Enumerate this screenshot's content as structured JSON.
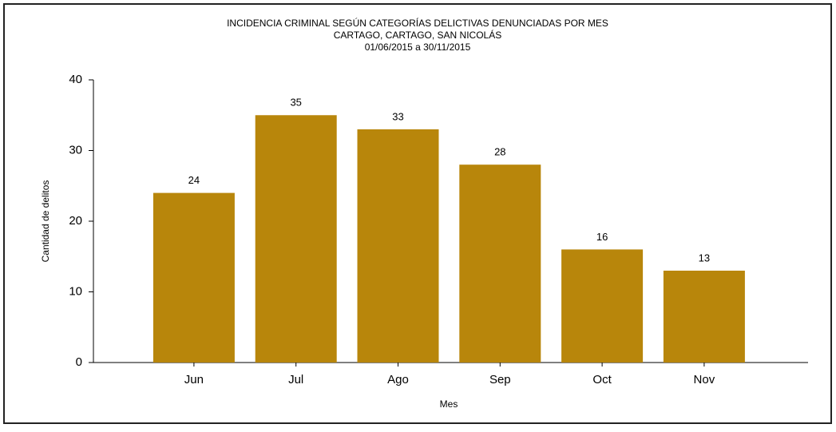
{
  "chart_data": {
    "type": "bar",
    "title": [
      "INCIDENCIA CRIMINAL SEGÚN CATEGORÍAS DELICTIVAS DENUNCIADAS POR MES",
      "CARTAGO, CARTAGO, SAN NICOLÁS",
      "01/06/2015 a 30/11/2015"
    ],
    "x_label": "Mes",
    "y_label": "Cantidad de delitos",
    "categories": [
      "Jun",
      "Jul",
      "Ago",
      "Sep",
      "Oct",
      "Nov"
    ],
    "values": [
      24,
      35,
      33,
      28,
      16,
      13
    ],
    "color": "#b8860b",
    "ylim": [
      0,
      40
    ],
    "yticks": [
      0,
      10,
      20,
      30,
      40
    ],
    "grid": false
  }
}
